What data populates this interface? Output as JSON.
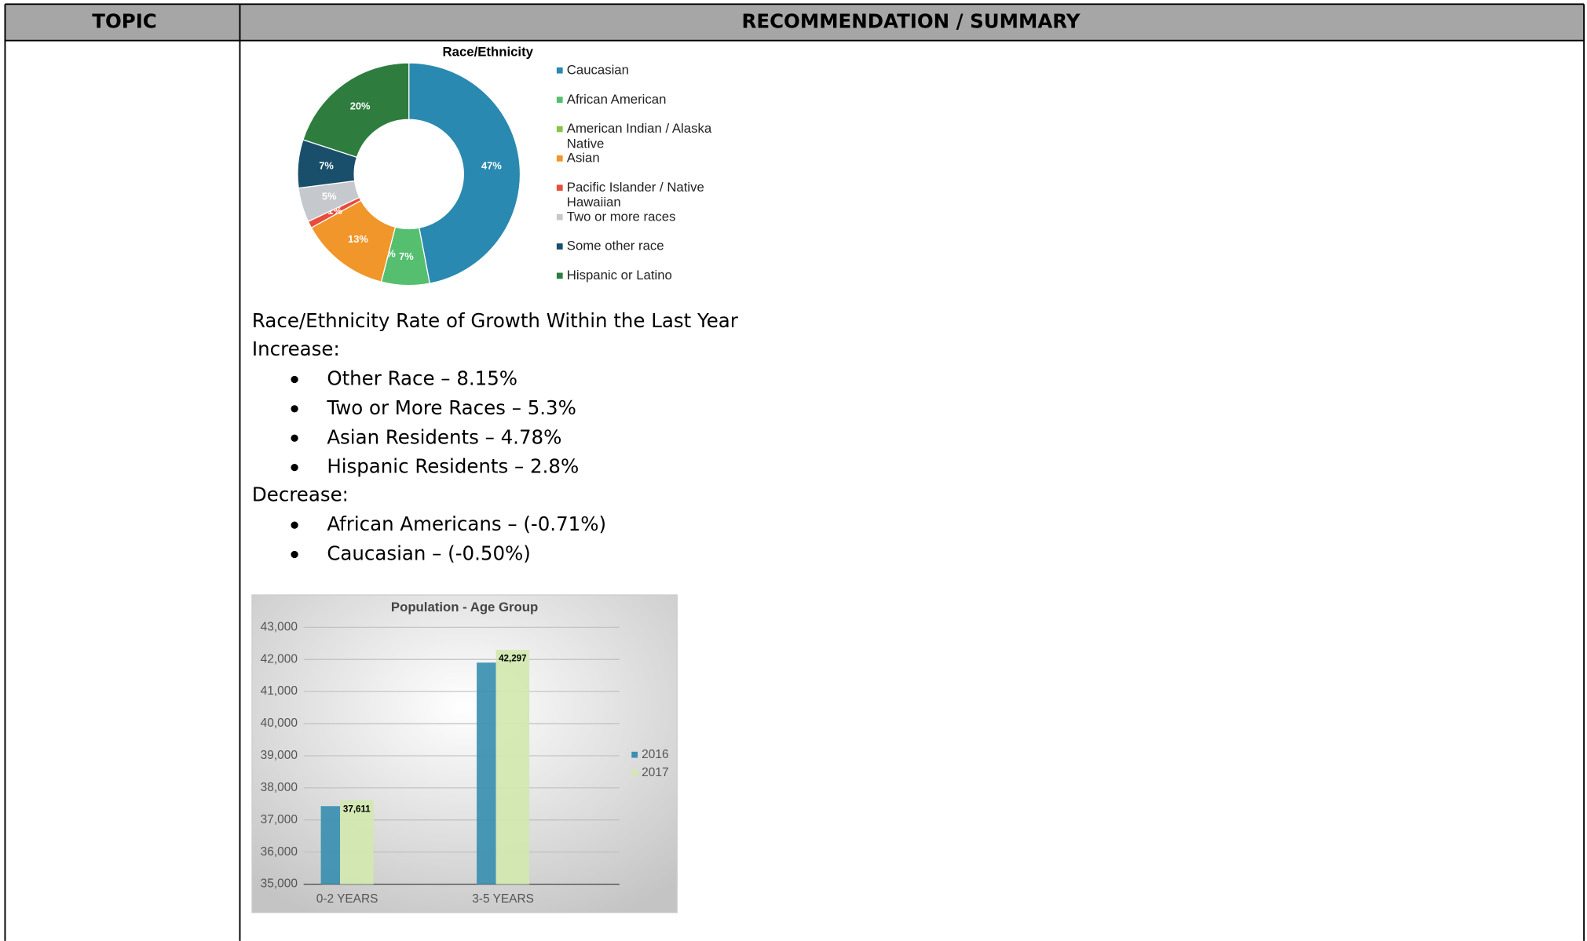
{
  "table": {
    "headers": [
      "TOPIC",
      "RECOMMENDATION / SUMMARY"
    ]
  },
  "chart_data": [
    {
      "type": "pie",
      "title": "Race/Ethnicity",
      "categories": [
        "Caucasian",
        "African American",
        "American Indian / Alaska Native",
        "Asian",
        "Pacific Islander / Native Hawaiian",
        "Two or more races",
        "Some other race",
        "Hispanic or Latino"
      ],
      "values": [
        47,
        7,
        0,
        13,
        1,
        5,
        7,
        20
      ],
      "value_labels": [
        "47%",
        "7%",
        "0%",
        "13%",
        "1%",
        "5%",
        "7%",
        "20%"
      ],
      "colors": [
        "#2a89b0",
        "#55bf6f",
        "#8bc34a",
        "#f0962a",
        "#e84c3d",
        "#c5c8cc",
        "#1a4f6b",
        "#2e7d3e"
      ],
      "donut": true,
      "legend": "right"
    },
    {
      "type": "bar",
      "title": "Population - Age Group",
      "categories": [
        "0-2 YEARS",
        "3-5 YEARS"
      ],
      "series": [
        {
          "name": "2016",
          "color": "#3a8fb0",
          "values": [
            37430,
            41900
          ]
        },
        {
          "name": "2017",
          "color": "#d2e8b0",
          "values": [
            37611,
            42297
          ],
          "value_labels": [
            "37,611",
            "42,297"
          ]
        }
      ],
      "ylim": [
        35000,
        43000
      ],
      "yticks": [
        {
          "value": 35000,
          "label": "35,000"
        },
        {
          "value": 36000,
          "label": "36,000"
        },
        {
          "value": 37000,
          "label": "37,000"
        },
        {
          "value": 38000,
          "label": "38,000"
        },
        {
          "value": 39000,
          "label": "39,000"
        },
        {
          "value": 40000,
          "label": "40,000"
        },
        {
          "value": 41000,
          "label": "41,000"
        },
        {
          "value": 42000,
          "label": "42,000"
        },
        {
          "value": 43000,
          "label": "43,000"
        }
      ],
      "grid": true,
      "legend": "right"
    }
  ],
  "growth": {
    "heading": "Race/Ethnicity Rate of Growth Within the Last Year",
    "increase_label": "Increase:",
    "increase": [
      "Other Race – 8.15%",
      "Two or More Races – 5.3%",
      "Asian Residents – 4.78%",
      "Hispanic Residents – 2.8%"
    ],
    "decrease_label": "Decrease:",
    "decrease": [
      "African Americans – (-0.71%)",
      "Caucasian – (-0.50%)"
    ]
  }
}
